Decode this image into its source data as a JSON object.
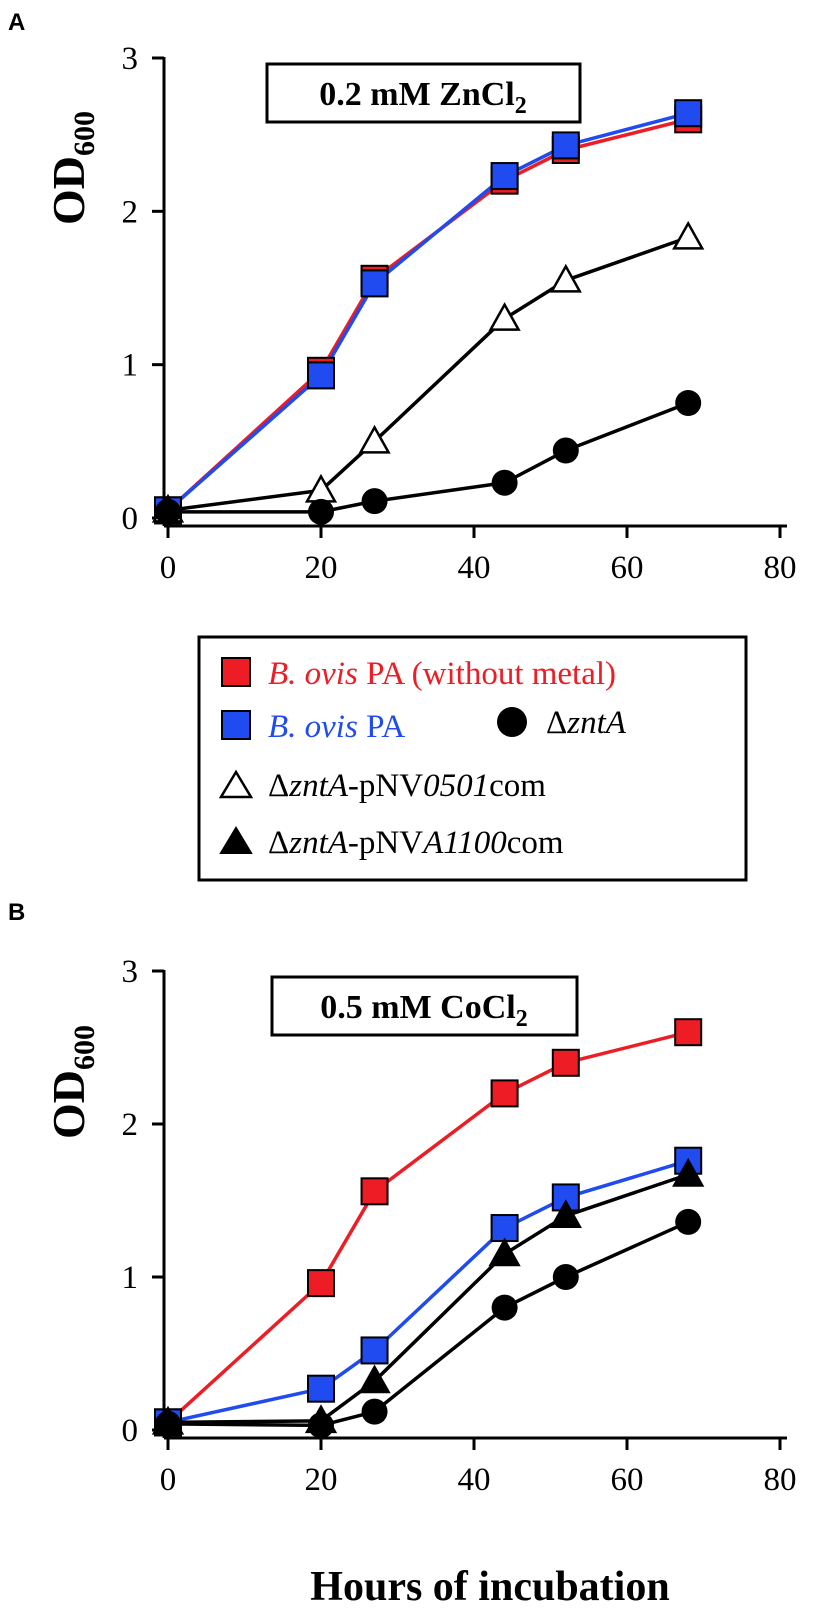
{
  "chart_data": [
    {
      "type": "line",
      "panel": "A",
      "condition": {
        "prefix": "0.2 mM ZnCl",
        "subscript": "2"
      },
      "ylabel": {
        "main": "OD",
        "sub": "600"
      },
      "xlabel": "",
      "xlim": [
        0,
        80
      ],
      "ylim": [
        0,
        3
      ],
      "xticks": [
        "0",
        "20",
        "40",
        "60",
        "80"
      ],
      "yticks": [
        "0",
        "1",
        "2",
        "3"
      ],
      "series": [
        {
          "key": "wt_nometal",
          "x": [
            0,
            20,
            27,
            44,
            52,
            68
          ],
          "y": [
            0.05,
            0.96,
            1.56,
            2.2,
            2.4,
            2.6
          ]
        },
        {
          "key": "wt",
          "x": [
            0,
            20,
            27,
            44,
            52,
            68
          ],
          "y": [
            0.05,
            0.93,
            1.53,
            2.23,
            2.43,
            2.64
          ]
        },
        {
          "key": "ztna_0501",
          "x": [
            0,
            20,
            27,
            44,
            52,
            68
          ],
          "y": [
            0.05,
            0.18,
            0.5,
            1.3,
            1.55,
            1.83
          ]
        },
        {
          "key": "ztna",
          "x": [
            0,
            20,
            27,
            44,
            52,
            68
          ],
          "y": [
            0.04,
            0.04,
            0.11,
            0.23,
            0.44,
            0.75
          ]
        }
      ]
    },
    {
      "type": "line",
      "panel": "B",
      "condition": {
        "prefix": "0.5 mM CoCl",
        "subscript": "2"
      },
      "ylabel": {
        "main": "OD",
        "sub": "600"
      },
      "xlabel": "Hours of incubation",
      "xlim": [
        0,
        80
      ],
      "ylim": [
        0,
        3
      ],
      "xticks": [
        "0",
        "20",
        "40",
        "60",
        "80"
      ],
      "yticks": [
        "0",
        "1",
        "2",
        "3"
      ],
      "series": [
        {
          "key": "wt_nometal",
          "x": [
            0,
            20,
            27,
            44,
            52,
            68
          ],
          "y": [
            0.05,
            0.96,
            1.56,
            2.2,
            2.4,
            2.6
          ]
        },
        {
          "key": "wt",
          "x": [
            0,
            20,
            27,
            44,
            52,
            68
          ],
          "y": [
            0.05,
            0.27,
            0.52,
            1.32,
            1.52,
            1.76
          ]
        },
        {
          "key": "ztna_a1100",
          "x": [
            0,
            20,
            27,
            44,
            52,
            68
          ],
          "y": [
            0.05,
            0.06,
            0.32,
            1.15,
            1.4,
            1.67
          ]
        },
        {
          "key": "ztna",
          "x": [
            0,
            20,
            27,
            44,
            52,
            68
          ],
          "y": [
            0.04,
            0.03,
            0.12,
            0.8,
            1.0,
            1.36
          ]
        }
      ]
    }
  ],
  "styles": {
    "wt_nometal": {
      "marker": "square",
      "fill": "#ee1c24",
      "line": "#ee1c24"
    },
    "wt": {
      "marker": "square",
      "fill": "#1f4bf0",
      "line": "#1f4bf0"
    },
    "ztna": {
      "marker": "circle",
      "fill": "#000000",
      "line": "#000000"
    },
    "ztna_0501": {
      "marker": "triangle-open",
      "fill": "#ffffff",
      "line": "#000000"
    },
    "ztna_a1100": {
      "marker": "triangle",
      "fill": "#000000",
      "line": "#000000"
    }
  },
  "legend": {
    "wt_nometal": {
      "italic": "B. ovis",
      "rest": " PA (without metal)",
      "color": "#ee1c24"
    },
    "wt": {
      "italic": "B. ovis",
      "rest": " PA",
      "color": "#1f4bf0"
    },
    "ztna": {
      "delta": "Δ",
      "italic": "zntA"
    },
    "ztna_0501": {
      "delta": "Δ",
      "italic": "zntA",
      "mid": "-pNV",
      "italic2": "0501",
      "tail": "com"
    },
    "ztna_a1100": {
      "delta": "Δ",
      "italic": "zntA",
      "mid": "-pNV",
      "italic2": "A1100",
      "tail": "com"
    }
  }
}
